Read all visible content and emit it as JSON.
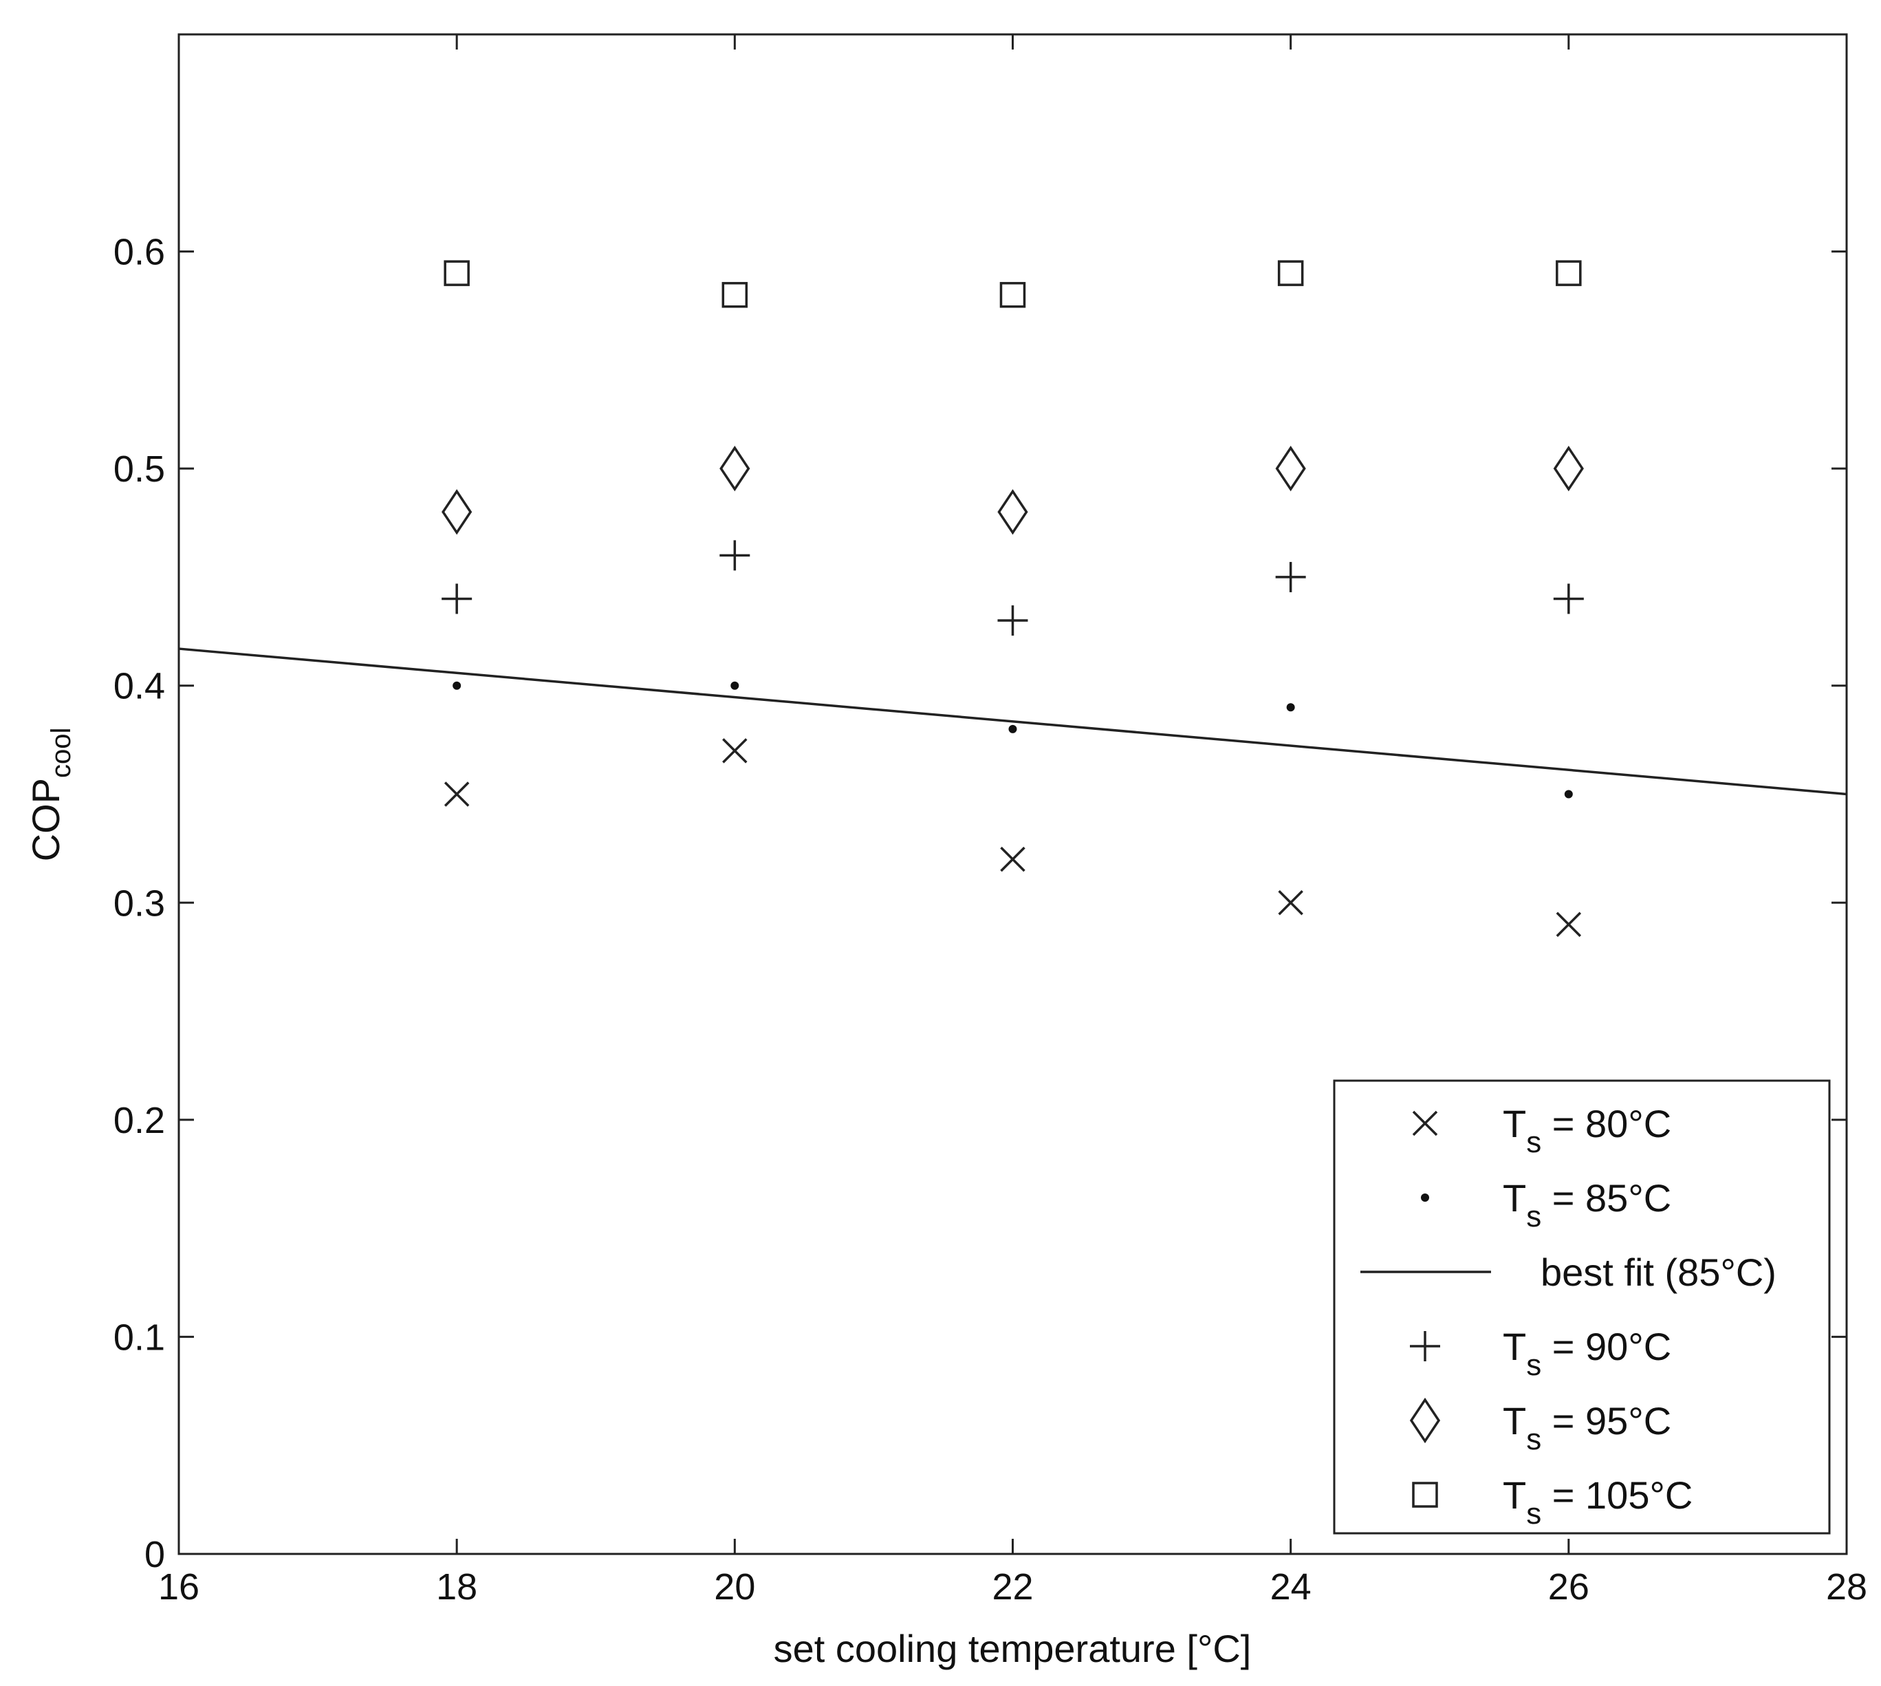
{
  "chart_data": {
    "type": "scatter",
    "title": "",
    "xlabel": "set cooling temperature [°C]",
    "ylabel_main": "COP",
    "ylabel_sub": "cool",
    "xlim": [
      16,
      28
    ],
    "ylim": [
      0,
      0.7
    ],
    "xticks": [
      16,
      18,
      20,
      22,
      24,
      26,
      28
    ],
    "xtick_labels": [
      "16",
      "18",
      "20",
      "22",
      "24",
      "26",
      "28"
    ],
    "yticks": [
      0,
      0.1,
      0.2,
      0.3,
      0.4,
      0.5,
      0.6
    ],
    "ytick_labels": [
      "0",
      "0.1",
      "0.2",
      "0.3",
      "0.4",
      "0.5",
      "0.6"
    ],
    "grid": false,
    "legend_position": "bottom-right",
    "x": [
      18,
      20,
      22,
      24,
      26
    ],
    "series": [
      {
        "legend_main": "T",
        "legend_sub": "s",
        "legend_suffix": " = 80°C",
        "marker": "x",
        "values": [
          0.35,
          0.37,
          0.32,
          0.3,
          0.29
        ]
      },
      {
        "legend_main": "T",
        "legend_sub": "s",
        "legend_suffix": " = 85°C",
        "marker": "dot",
        "values": [
          0.4,
          0.4,
          0.38,
          0.39,
          0.35
        ]
      },
      {
        "legend_main": "T",
        "legend_sub": "s",
        "legend_suffix": " = 90°C",
        "marker": "plus",
        "values": [
          0.44,
          0.46,
          0.43,
          0.45,
          0.44
        ]
      },
      {
        "legend_main": "T",
        "legend_sub": "s",
        "legend_suffix": " = 95°C",
        "marker": "diamond",
        "values": [
          0.48,
          0.5,
          0.48,
          0.5,
          0.5
        ]
      },
      {
        "legend_main": "T",
        "legend_sub": "s",
        "legend_suffix": " = 105°C",
        "marker": "square",
        "values": [
          0.59,
          0.58,
          0.58,
          0.59,
          0.59
        ]
      }
    ],
    "fit_line": {
      "legend_label": "best fit (85°C)",
      "x": [
        16,
        28
      ],
      "y": [
        0.417,
        0.35
      ]
    },
    "legend_order": [
      "s0",
      "s1",
      "fit",
      "s2",
      "s3",
      "s4"
    ]
  }
}
